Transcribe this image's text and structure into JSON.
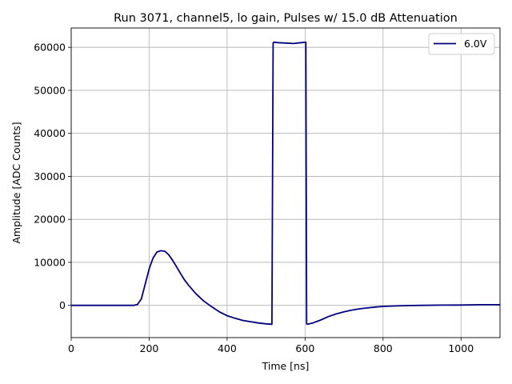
{
  "chart_data": {
    "type": "line",
    "title": "Run 3071, channel5, lo gain, Pulses w/ 15.0 dB Attenuation",
    "xlabel": "Time [ns]",
    "ylabel": "Amplitude [ADC Counts]",
    "xlim": [
      0,
      1100
    ],
    "ylim": [
      -7500,
      64500
    ],
    "xticks": [
      0,
      200,
      400,
      600,
      800,
      1000
    ],
    "yticks": [
      0,
      10000,
      20000,
      30000,
      40000,
      50000,
      60000
    ],
    "grid": true,
    "legend_position": "top-right",
    "series": [
      {
        "name": "6.0V",
        "color": "#000080",
        "x": [
          0,
          100,
          160,
          170,
          180,
          190,
          200,
          210,
          220,
          230,
          240,
          250,
          260,
          270,
          280,
          290,
          300,
          320,
          340,
          360,
          380,
          400,
          420,
          440,
          460,
          480,
          500,
          515,
          518,
          520,
          530,
          550,
          570,
          590,
          602,
          604,
          606,
          620,
          640,
          660,
          680,
          700,
          720,
          740,
          760,
          780,
          800,
          850,
          900,
          950,
          1000,
          1050,
          1100
        ],
        "y": [
          0,
          0,
          0,
          200,
          1500,
          5000,
          8500,
          11000,
          12400,
          12700,
          12600,
          11800,
          10500,
          9000,
          7500,
          6000,
          4800,
          2700,
          1000,
          -300,
          -1500,
          -2400,
          -3000,
          -3500,
          -3800,
          -4100,
          -4300,
          -4400,
          61000,
          61200,
          61100,
          61000,
          60900,
          61100,
          61200,
          -4300,
          -4400,
          -4100,
          -3400,
          -2600,
          -2000,
          -1500,
          -1100,
          -800,
          -600,
          -400,
          -250,
          -80,
          0,
          50,
          80,
          150,
          150
        ]
      }
    ]
  }
}
